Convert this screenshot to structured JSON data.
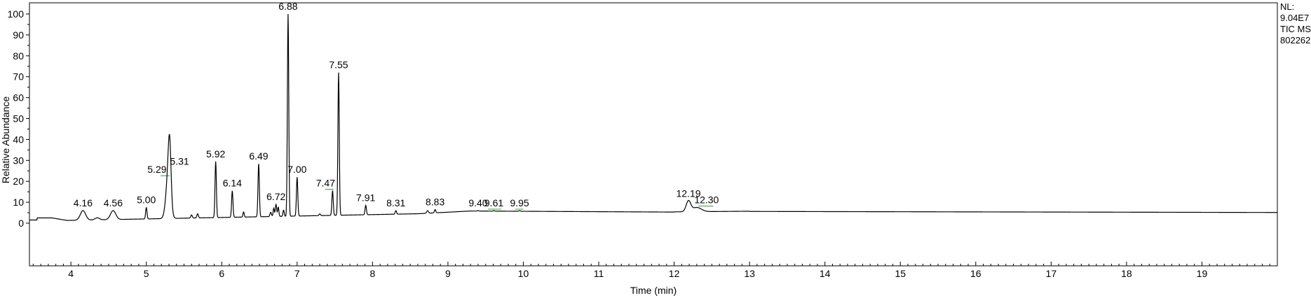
{
  "side_info": {
    "line1": "NL:",
    "line2": "9.04E7",
    "line3": "TIC  MS",
    "line4": "802262-"
  },
  "chart_data": {
    "type": "line",
    "xlabel": "Time (min)",
    "ylabel": "Relative Abundance",
    "xlim": [
      3.45,
      20.0
    ],
    "ylim": [
      0,
      100
    ],
    "x_ticks": [
      4,
      5,
      6,
      7,
      8,
      9,
      10,
      11,
      12,
      13,
      14,
      15,
      16,
      17,
      18,
      19
    ],
    "y_ticks": [
      0,
      10,
      20,
      30,
      40,
      50,
      60,
      70,
      80,
      90,
      100
    ],
    "grid": false,
    "trace_color": "#000000",
    "baseline_color": "#2ca02c",
    "series": [
      {
        "peaks": [
          {
            "label": "4.16",
            "rt": 4.16,
            "height": 6.0
          },
          {
            "label": "4.56",
            "rt": 4.56,
            "height": 6.0
          },
          {
            "label": "5.00",
            "rt": 5.0,
            "height": 7.5
          },
          {
            "label": "5.29",
            "rt": 5.29,
            "height": 22.0
          },
          {
            "label": "5.31",
            "rt": 5.31,
            "height": 26.0
          },
          {
            "label": "5.92",
            "rt": 5.92,
            "height": 29.5
          },
          {
            "label": "6.14",
            "rt": 6.14,
            "height": 15.5
          },
          {
            "label": "6.49",
            "rt": 6.49,
            "height": 28.5
          },
          {
            "label": "6.72",
            "rt": 6.72,
            "height": 9.0
          },
          {
            "label": "6.88",
            "rt": 6.88,
            "height": 100.0
          },
          {
            "label": "7.00",
            "rt": 7.0,
            "height": 22.0
          },
          {
            "label": "7.47",
            "rt": 7.47,
            "height": 15.5
          },
          {
            "label": "7.55",
            "rt": 7.55,
            "height": 72.0
          },
          {
            "label": "7.91",
            "rt": 7.91,
            "height": 8.5
          },
          {
            "label": "8.31",
            "rt": 8.31,
            "height": 6.0
          },
          {
            "label": "8.83",
            "rt": 8.83,
            "height": 6.5
          },
          {
            "label": "9.40",
            "rt": 9.4,
            "height": 6.0
          },
          {
            "label": "9.61",
            "rt": 9.61,
            "height": 6.0
          },
          {
            "label": "9.95",
            "rt": 9.95,
            "height": 6.0
          },
          {
            "label": "12.19",
            "rt": 12.19,
            "height": 10.5
          },
          {
            "label": "12.30",
            "rt": 12.3,
            "height": 7.5
          }
        ]
      }
    ]
  }
}
